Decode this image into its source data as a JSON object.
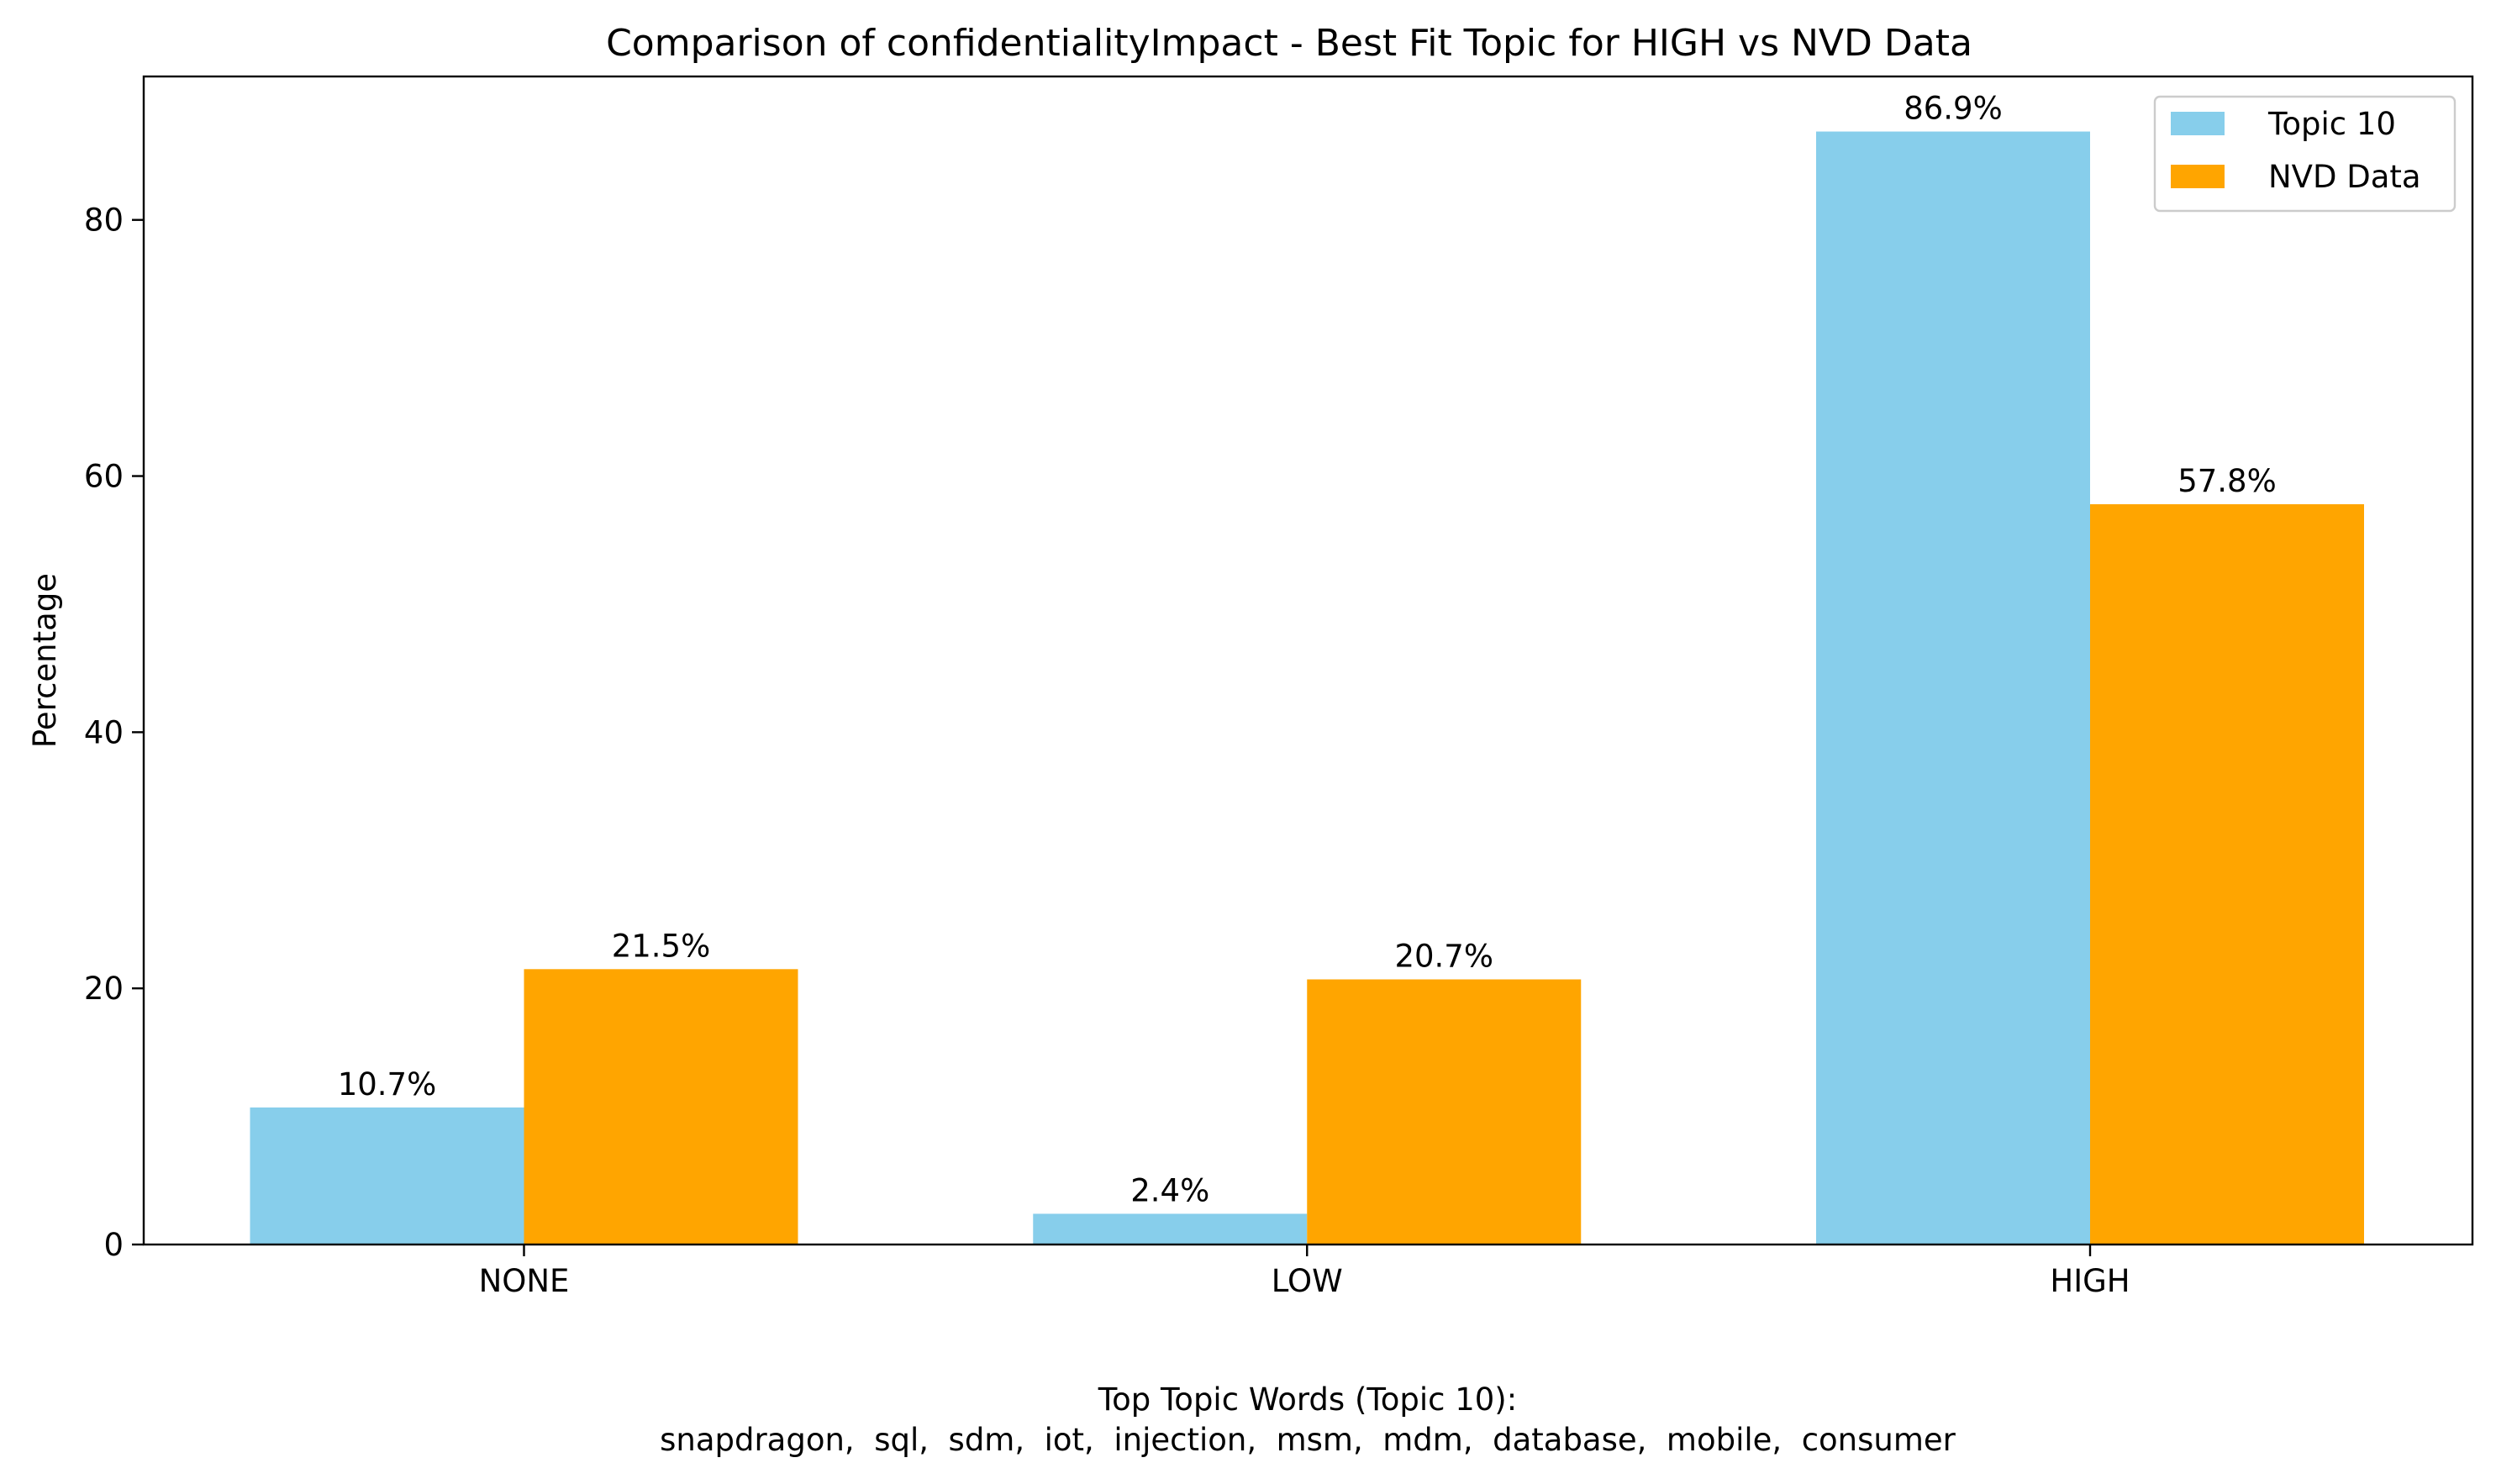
{
  "chart_data": {
    "type": "bar",
    "title": "Comparison of confidentialityImpact - Best Fit Topic for HIGH vs NVD Data",
    "xlabel": "",
    "ylabel": "Percentage",
    "categories": [
      "NONE",
      "LOW",
      "HIGH"
    ],
    "ylim": [
      0,
      91.2
    ],
    "yticks": [
      0,
      20,
      40,
      60,
      80
    ],
    "grid": false,
    "legend_position": "top-right",
    "series": [
      {
        "name": "Topic 10",
        "color": "#87CEEB",
        "values": [
          10.7,
          2.4,
          86.9
        ],
        "value_labels": [
          "10.7%",
          "2.4%",
          "86.9%"
        ]
      },
      {
        "name": "NVD Data",
        "color": "#FFA500",
        "values": [
          21.5,
          20.7,
          57.8
        ],
        "value_labels": [
          "21.5%",
          "20.7%",
          "57.8%"
        ]
      }
    ],
    "annotations": {
      "footer_line1": "Top Topic Words (Topic 10):",
      "footer_line2": "snapdragon,  sql,  sdm,  iot,  injection,  msm,  mdm,  database,  mobile,  consumer"
    }
  }
}
